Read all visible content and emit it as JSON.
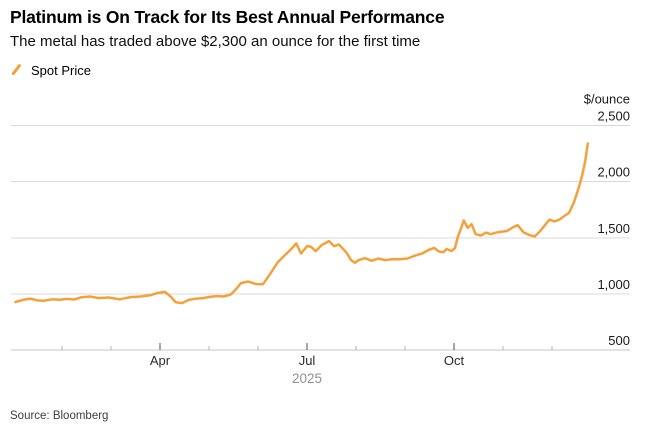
{
  "header": {
    "title": "Platinum is On Track for Its Best Annual Performance",
    "subtitle": "The metal has traded above $2,300 an ounce for the first time"
  },
  "legend": {
    "label": "Spot Price"
  },
  "source": "Source: Bloomberg",
  "colors": {
    "line": "#F5A13B",
    "grid": "#D9D9D9",
    "axis": "#C4C4C4",
    "tick_minor": "#B3B3B3",
    "tick_major": "#4D4D4D",
    "axis_text": "#1A1A1A",
    "month_text": "#2B2B2B",
    "year_text": "#909090"
  },
  "chart_data": {
    "type": "line",
    "title": "Platinum is On Track for Its Best Annual Performance",
    "subtitle": "The metal has traded above $2,300 an ounce for the first time",
    "unit_label": "$/ounce",
    "ylabel": "$/ounce",
    "ylim": [
      500,
      2500
    ],
    "yticks": [
      500,
      1000,
      1500,
      2000,
      2500
    ],
    "grid": "horizontal",
    "legend_position": "top-left",
    "x_axis": {
      "year_label": "2025",
      "minor_tick_months": [
        1,
        2,
        4,
        5,
        7,
        8,
        10,
        11
      ],
      "major_ticks": [
        {
          "month": 3,
          "label": "Apr"
        },
        {
          "month": 6,
          "label": "Jul"
        },
        {
          "month": 9,
          "label": "Oct"
        }
      ]
    },
    "series": [
      {
        "name": "Spot Price",
        "color": "#F5A13B",
        "x_unit": "month_fraction_from_jan_2025",
        "points": [
          [
            0.05,
            928
          ],
          [
            0.2,
            946
          ],
          [
            0.35,
            958
          ],
          [
            0.5,
            942
          ],
          [
            0.62,
            938
          ],
          [
            0.8,
            952
          ],
          [
            0.95,
            948
          ],
          [
            1.1,
            955
          ],
          [
            1.25,
            950
          ],
          [
            1.4,
            970
          ],
          [
            1.57,
            977
          ],
          [
            1.75,
            962
          ],
          [
            1.95,
            968
          ],
          [
            2.18,
            952
          ],
          [
            2.4,
            971
          ],
          [
            2.6,
            977
          ],
          [
            2.8,
            988
          ],
          [
            2.95,
            1008
          ],
          [
            3.1,
            1018
          ],
          [
            3.22,
            975
          ],
          [
            3.32,
            926
          ],
          [
            3.45,
            918
          ],
          [
            3.58,
            945
          ],
          [
            3.72,
            957
          ],
          [
            3.88,
            962
          ],
          [
            4.0,
            972
          ],
          [
            4.15,
            980
          ],
          [
            4.3,
            977
          ],
          [
            4.45,
            996
          ],
          [
            4.55,
            1040
          ],
          [
            4.65,
            1096
          ],
          [
            4.8,
            1110
          ],
          [
            4.95,
            1088
          ],
          [
            5.1,
            1085
          ],
          [
            5.25,
            1180
          ],
          [
            5.4,
            1280
          ],
          [
            5.55,
            1345
          ],
          [
            5.68,
            1400
          ],
          [
            5.78,
            1450
          ],
          [
            5.88,
            1360
          ],
          [
            6.0,
            1425
          ],
          [
            6.08,
            1420
          ],
          [
            6.18,
            1380
          ],
          [
            6.3,
            1435
          ],
          [
            6.45,
            1470
          ],
          [
            6.55,
            1425
          ],
          [
            6.65,
            1440
          ],
          [
            6.8,
            1370
          ],
          [
            6.9,
            1300
          ],
          [
            6.98,
            1277
          ],
          [
            7.05,
            1300
          ],
          [
            7.18,
            1318
          ],
          [
            7.32,
            1295
          ],
          [
            7.45,
            1315
          ],
          [
            7.6,
            1300
          ],
          [
            7.75,
            1310
          ],
          [
            7.9,
            1308
          ],
          [
            8.05,
            1315
          ],
          [
            8.2,
            1340
          ],
          [
            8.35,
            1360
          ],
          [
            8.5,
            1395
          ],
          [
            8.6,
            1410
          ],
          [
            8.68,
            1380
          ],
          [
            8.78,
            1370
          ],
          [
            8.85,
            1400
          ],
          [
            8.95,
            1382
          ],
          [
            9.02,
            1408
          ],
          [
            9.08,
            1510
          ],
          [
            9.14,
            1580
          ],
          [
            9.2,
            1655
          ],
          [
            9.28,
            1588
          ],
          [
            9.36,
            1622
          ],
          [
            9.44,
            1532
          ],
          [
            9.55,
            1520
          ],
          [
            9.65,
            1546
          ],
          [
            9.75,
            1532
          ],
          [
            9.85,
            1545
          ],
          [
            9.95,
            1552
          ],
          [
            10.08,
            1560
          ],
          [
            10.2,
            1592
          ],
          [
            10.3,
            1612
          ],
          [
            10.42,
            1548
          ],
          [
            10.55,
            1522
          ],
          [
            10.65,
            1512
          ],
          [
            10.75,
            1556
          ],
          [
            10.85,
            1608
          ],
          [
            10.95,
            1662
          ],
          [
            11.05,
            1645
          ],
          [
            11.15,
            1662
          ],
          [
            11.25,
            1694
          ],
          [
            11.35,
            1722
          ],
          [
            11.45,
            1818
          ],
          [
            11.55,
            1952
          ],
          [
            11.62,
            2064
          ],
          [
            11.68,
            2186
          ],
          [
            11.73,
            2340
          ]
        ]
      }
    ]
  }
}
